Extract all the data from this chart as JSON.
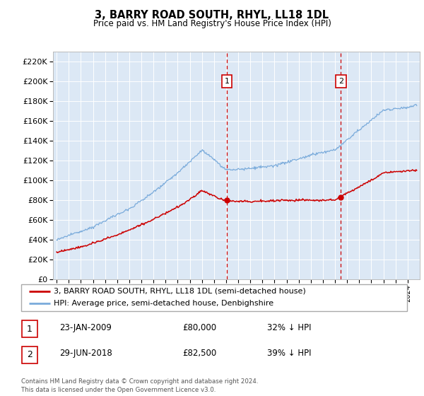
{
  "title": "3, BARRY ROAD SOUTH, RHYL, LL18 1DL",
  "subtitle": "Price paid vs. HM Land Registry's House Price Index (HPI)",
  "ylabel_vals": [
    "£0",
    "£20K",
    "£40K",
    "£60K",
    "£80K",
    "£100K",
    "£120K",
    "£140K",
    "£160K",
    "£180K",
    "£200K",
    "£220K"
  ],
  "yticks": [
    0,
    20000,
    40000,
    60000,
    80000,
    100000,
    120000,
    140000,
    160000,
    180000,
    200000,
    220000
  ],
  "ylim": [
    0,
    230000
  ],
  "hpi_color": "#7aabdb",
  "price_color": "#cc0000",
  "dashed_line_color": "#cc0000",
  "background_color": "#dce8f5",
  "legend_border_color": "#aaaaaa",
  "sale1_x": 2009.06,
  "sale1_price": 80000,
  "sale2_x": 2018.49,
  "sale2_price": 82500,
  "legend_line1": "3, BARRY ROAD SOUTH, RHYL, LL18 1DL (semi-detached house)",
  "legend_line2": "HPI: Average price, semi-detached house, Denbighshire",
  "footer": "Contains HM Land Registry data © Crown copyright and database right 2024.\nThis data is licensed under the Open Government Licence v3.0.",
  "table_entries": [
    {
      "num": "1",
      "date": "23-JAN-2009",
      "price": "£80,000",
      "hpi": "32% ↓ HPI"
    },
    {
      "num": "2",
      "date": "29-JUN-2018",
      "price": "£82,500",
      "hpi": "39% ↓ HPI"
    }
  ]
}
